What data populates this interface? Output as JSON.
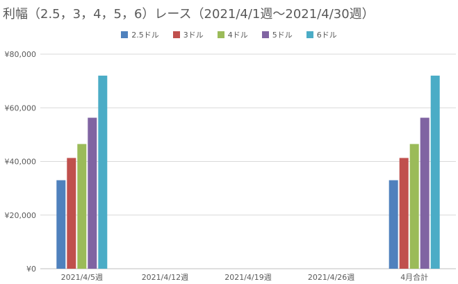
{
  "chart_data": {
    "type": "bar",
    "title": "利幅（2.5，3，4，5，6）レース（2021/4/1週〜2021/4/30週）",
    "categories": [
      "2021/4/5週",
      "2021/4/12週",
      "2021/4/19週",
      "2021/4/26週",
      "4月合計"
    ],
    "series": [
      {
        "name": "2.5ドル",
        "color": "#4f81bd",
        "values": [
          33000,
          0,
          0,
          0,
          33000
        ]
      },
      {
        "name": "3ドル",
        "color": "#c0504d",
        "values": [
          41300,
          0,
          0,
          0,
          41300
        ]
      },
      {
        "name": "4ドル",
        "color": "#9bbb59",
        "values": [
          46500,
          0,
          0,
          0,
          46500
        ]
      },
      {
        "name": "5ドル",
        "color": "#8064a2",
        "values": [
          56300,
          0,
          0,
          0,
          56300
        ]
      },
      {
        "name": "6ドル",
        "color": "#4bacc6",
        "values": [
          72000,
          0,
          0,
          0,
          72000
        ]
      }
    ],
    "y_ticks": [
      "¥0",
      "¥20,000",
      "¥40,000",
      "¥60,000",
      "¥80,000"
    ],
    "ylim": [
      0,
      80000
    ],
    "grid": true,
    "legend_position": "top"
  }
}
